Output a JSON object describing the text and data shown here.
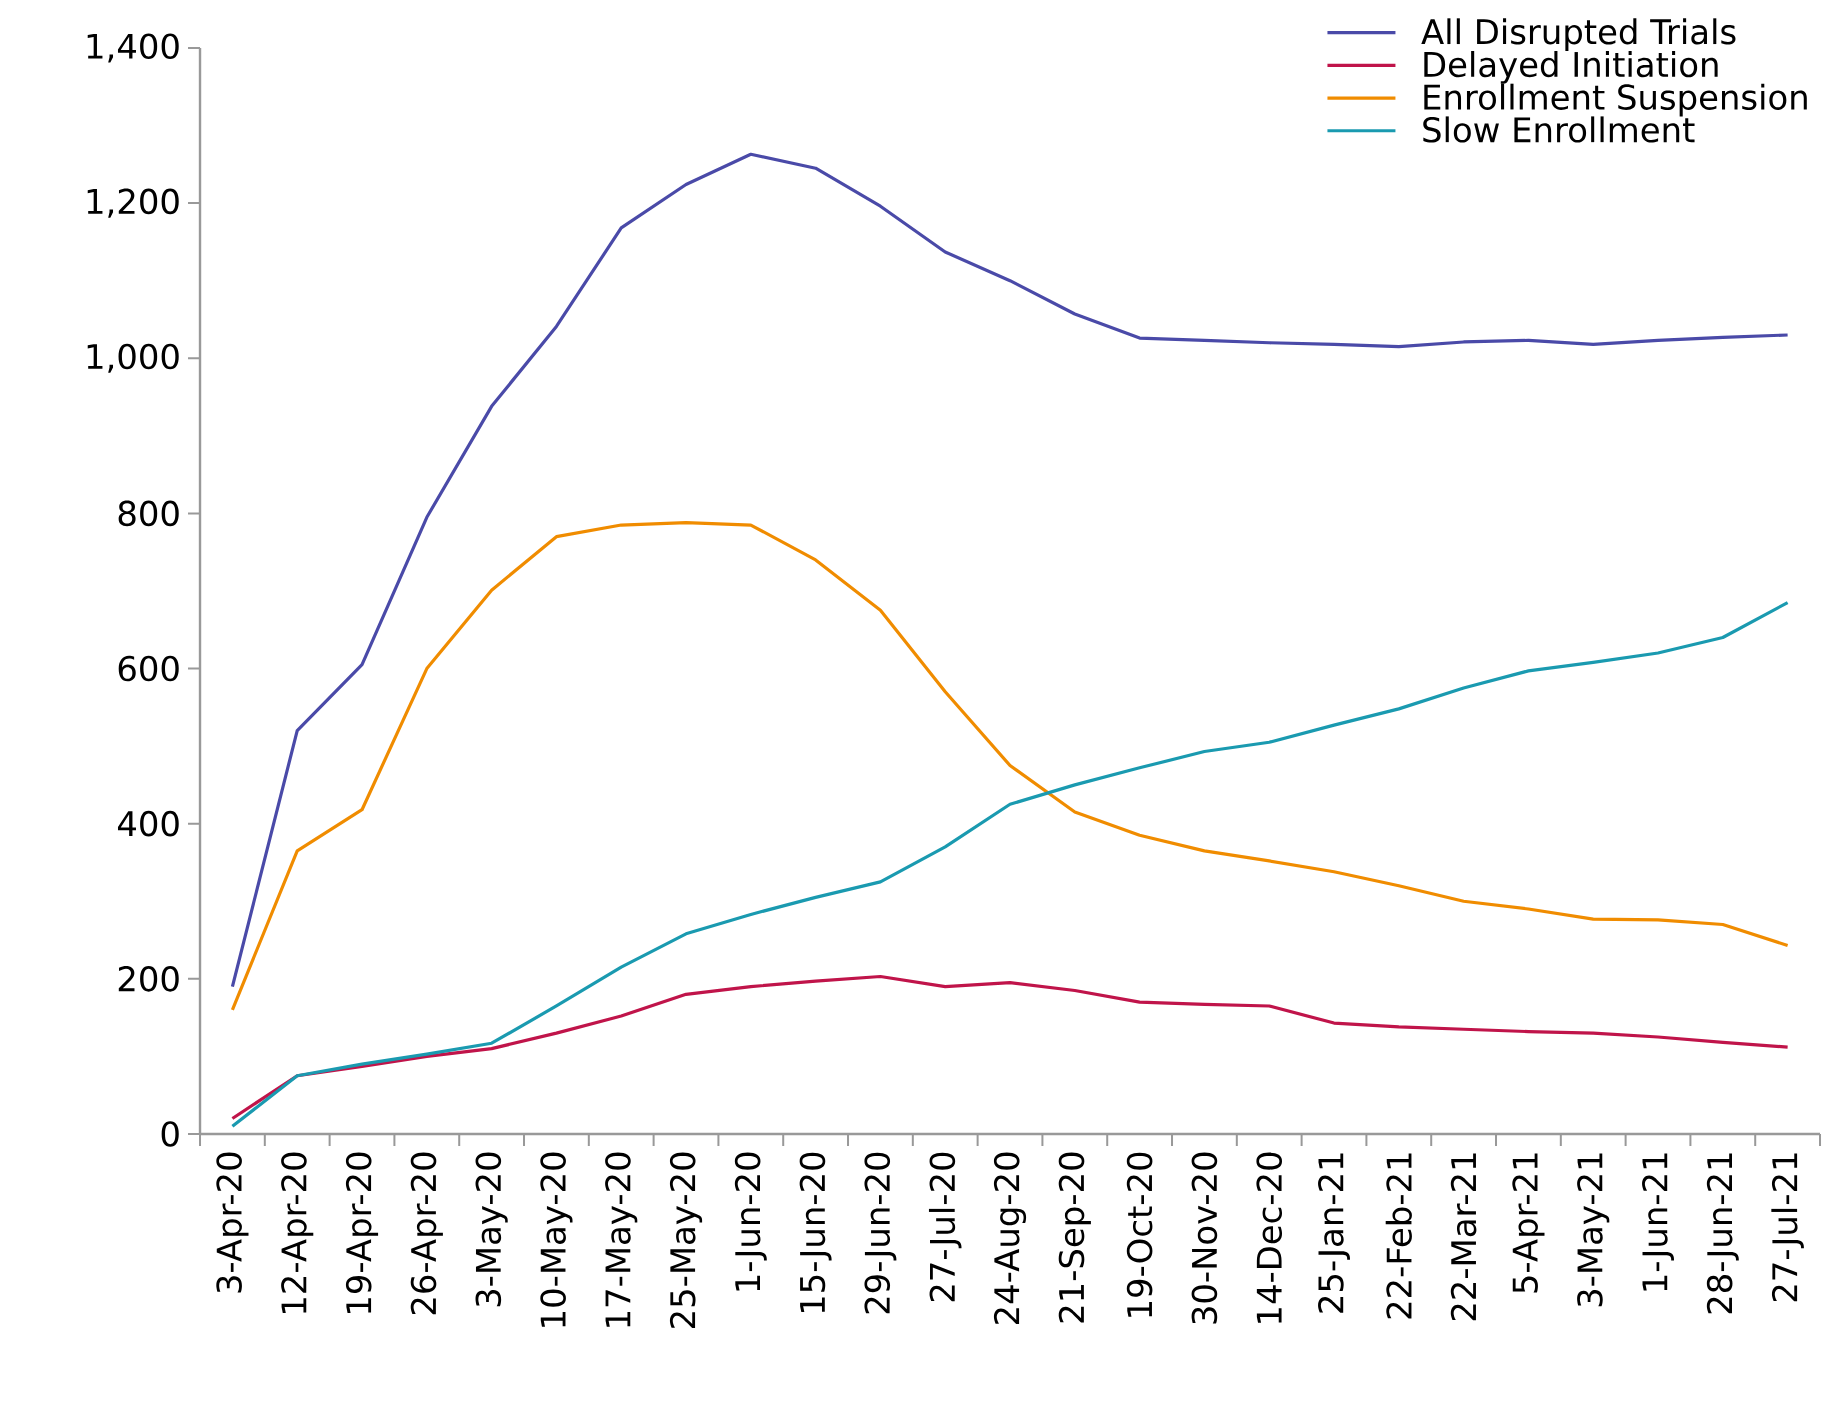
{
  "chart_data": {
    "type": "line",
    "categories": [
      "3-Apr-20",
      "12-Apr-20",
      "19-Apr-20",
      "26-Apr-20",
      "3-May-20",
      "10-May-20",
      "17-May-20",
      "25-May-20",
      "1-Jun-20",
      "15-Jun-20",
      "29-Jun-20",
      "27-Jul-20",
      "24-Aug-20",
      "21-Sep-20",
      "19-Oct-20",
      "30-Nov-20",
      "14-Dec-20",
      "25-Jan-21",
      "22-Feb-21",
      "22-Mar-21",
      "5-Apr-21",
      "3-May-21",
      "1-Jun-21",
      "28-Jun-21",
      "27-Jul-21"
    ],
    "series": [
      {
        "name": "All Disrupted Trials",
        "color": "#4a4aa8",
        "values": [
          190,
          520,
          605,
          795,
          938,
          1041,
          1168,
          1224,
          1263,
          1245,
          1196,
          1137,
          1100,
          1057,
          1026,
          1023,
          1020,
          1018,
          1015,
          1021,
          1023,
          1018,
          1023,
          1027,
          1030
        ]
      },
      {
        "name": "Delayed Initiation",
        "color": "#c0144a",
        "values": [
          20,
          75,
          87,
          100,
          110,
          130,
          152,
          180,
          190,
          197,
          203,
          190,
          195,
          185,
          170,
          167,
          165,
          143,
          138,
          135,
          132,
          130,
          125,
          118,
          112
        ]
      },
      {
        "name": "Enrollment Suspension",
        "color": "#f08c00",
        "values": [
          160,
          365,
          418,
          600,
          701,
          770,
          785,
          788,
          785,
          740,
          675,
          570,
          475,
          415,
          385,
          365,
          352,
          338,
          320,
          300,
          290,
          277,
          276,
          270,
          243
        ]
      },
      {
        "name": "Slow Enrollment",
        "color": "#1a9ab0",
        "values": [
          10,
          75,
          90,
          103,
          117,
          165,
          215,
          258,
          283,
          305,
          325,
          370,
          425,
          450,
          472,
          493,
          505,
          527,
          548,
          575,
          597,
          608,
          620,
          640,
          685
        ]
      }
    ],
    "ylim": [
      0,
      1400
    ],
    "yticks": [
      0,
      200,
      400,
      600,
      800,
      {
        "value": 1000,
        "label": "1,000"
      },
      {
        "value": 1200,
        "label": "1,200"
      },
      {
        "value": 1400,
        "label": "1,400"
      }
    ],
    "legend": "top right",
    "marker": "none",
    "line_style": "solid",
    "grid": false
  }
}
